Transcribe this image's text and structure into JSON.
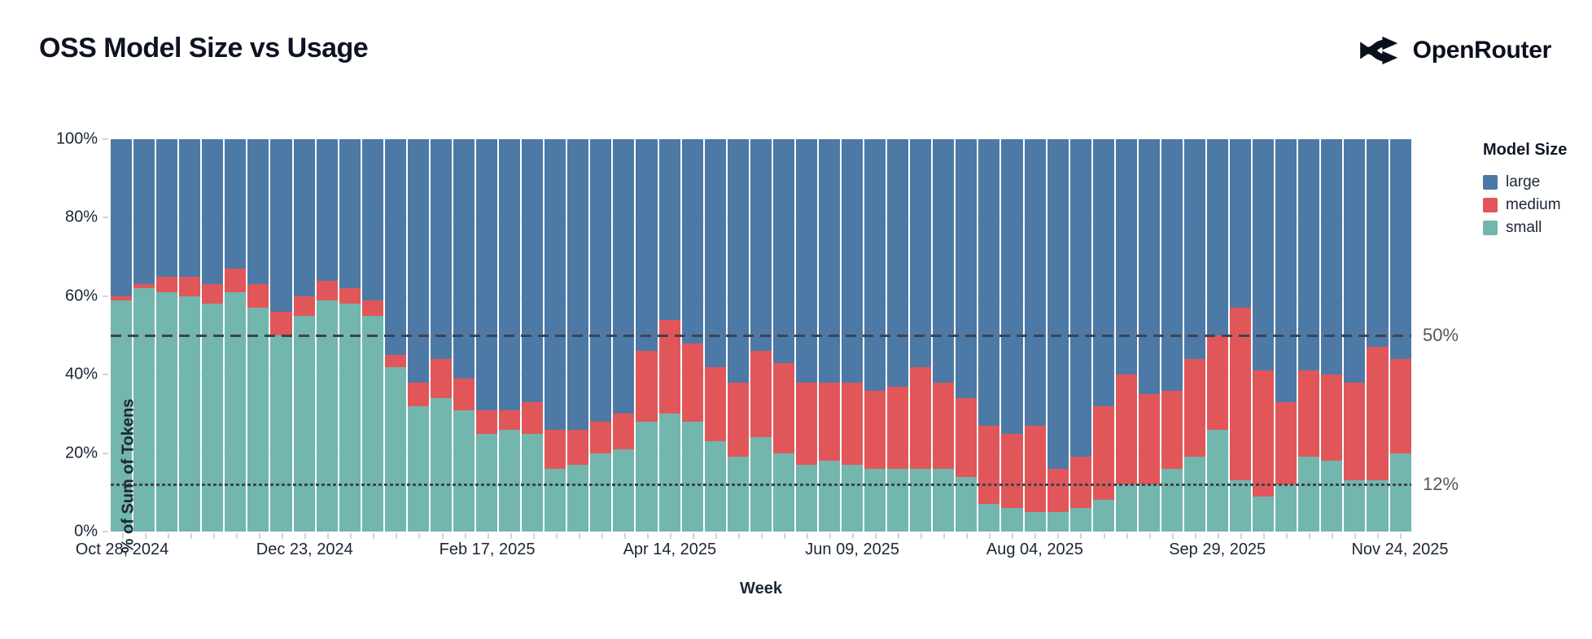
{
  "header": {
    "title": "OSS Model Size vs Usage",
    "brand": "OpenRouter"
  },
  "colors": {
    "large": "#4d79a7",
    "medium": "#e15759",
    "small": "#72b6ae",
    "reference_line": "#3d4350",
    "annotation_text": "#54575f",
    "axis_text": "#1b2636",
    "title_text": "#0d1321",
    "gridline": "#e8e9ed"
  },
  "chart_data": {
    "type": "bar",
    "stacked": true,
    "normalized_percent": true,
    "title": "OSS Model Size vs Usage",
    "xlabel": "Week",
    "ylabel": "% of Sum of Tokens",
    "ylim": [
      0,
      100
    ],
    "grid": true,
    "y_ticks": [
      0,
      20,
      40,
      60,
      80,
      100
    ],
    "x_tick_every": 8,
    "x_tick_labels": [
      "Oct 28, 2024",
      "Dec 23, 2024",
      "Feb 17, 2025",
      "Apr 14, 2025",
      "Jun 09, 2025",
      "Aug 04, 2025",
      "Sep 29, 2025",
      "Nov 24, 2025"
    ],
    "legend_title": "Model Size",
    "legend_position": "right",
    "stack_order_bottom_to_top": [
      "small",
      "medium",
      "large"
    ],
    "reference_lines": [
      {
        "value": 50,
        "label": "50%",
        "style": "dashed"
      },
      {
        "value": 12,
        "label": "12%",
        "style": "dotted"
      }
    ],
    "categories": [
      "Oct 28, 2024",
      "Nov 04, 2024",
      "Nov 11, 2024",
      "Nov 18, 2024",
      "Nov 25, 2024",
      "Dec 02, 2024",
      "Dec 09, 2024",
      "Dec 16, 2024",
      "Dec 23, 2024",
      "Dec 30, 2024",
      "Jan 06, 2025",
      "Jan 13, 2025",
      "Jan 20, 2025",
      "Jan 27, 2025",
      "Feb 03, 2025",
      "Feb 10, 2025",
      "Feb 17, 2025",
      "Feb 24, 2025",
      "Mar 03, 2025",
      "Mar 10, 2025",
      "Mar 17, 2025",
      "Mar 24, 2025",
      "Mar 31, 2025",
      "Apr 07, 2025",
      "Apr 14, 2025",
      "Apr 21, 2025",
      "Apr 28, 2025",
      "May 05, 2025",
      "May 12, 2025",
      "May 19, 2025",
      "May 26, 2025",
      "Jun 02, 2025",
      "Jun 09, 2025",
      "Jun 16, 2025",
      "Jun 23, 2025",
      "Jun 30, 2025",
      "Jul 07, 2025",
      "Jul 14, 2025",
      "Jul 21, 2025",
      "Jul 28, 2025",
      "Aug 04, 2025",
      "Aug 11, 2025",
      "Aug 18, 2025",
      "Aug 25, 2025",
      "Sep 01, 2025",
      "Sep 08, 2025",
      "Sep 15, 2025",
      "Sep 22, 2025",
      "Sep 29, 2025",
      "Oct 06, 2025",
      "Oct 13, 2025",
      "Oct 20, 2025",
      "Oct 27, 2025",
      "Nov 03, 2025",
      "Nov 10, 2025",
      "Nov 17, 2025",
      "Nov 24, 2025"
    ],
    "series": [
      {
        "name": "large",
        "color": "#4d79a7",
        "values": [
          40,
          37,
          35,
          35,
          37,
          33,
          37,
          44,
          40,
          36,
          38,
          41,
          55,
          62,
          56,
          61,
          69,
          69,
          67,
          74,
          74,
          72,
          70,
          54,
          46,
          52,
          58,
          62,
          54,
          57,
          62,
          62,
          62,
          64,
          63,
          58,
          62,
          66,
          73,
          75,
          73,
          84,
          81,
          68,
          60,
          65,
          64,
          56,
          50,
          43,
          59,
          67,
          59,
          60,
          62,
          53,
          56
        ]
      },
      {
        "name": "medium",
        "color": "#e15759",
        "values": [
          1,
          1,
          4,
          5,
          5,
          6,
          6,
          6,
          5,
          5,
          4,
          4,
          3,
          6,
          10,
          8,
          6,
          5,
          8,
          10,
          9,
          8,
          9,
          18,
          24,
          20,
          19,
          19,
          22,
          23,
          21,
          20,
          21,
          20,
          21,
          26,
          22,
          20,
          20,
          19,
          22,
          11,
          13,
          24,
          28,
          23,
          20,
          25,
          24,
          44,
          32,
          21,
          22,
          22,
          25,
          34,
          24
        ]
      },
      {
        "name": "small",
        "color": "#72b6ae",
        "values": [
          59,
          62,
          61,
          60,
          58,
          61,
          57,
          50,
          55,
          59,
          58,
          55,
          42,
          32,
          34,
          31,
          25,
          26,
          25,
          16,
          17,
          20,
          21,
          28,
          30,
          28,
          23,
          19,
          24,
          20,
          17,
          18,
          17,
          16,
          16,
          16,
          16,
          14,
          7,
          6,
          5,
          5,
          6,
          8,
          12,
          12,
          16,
          19,
          26,
          13,
          9,
          12,
          19,
          18,
          13,
          13,
          20
        ]
      }
    ]
  }
}
